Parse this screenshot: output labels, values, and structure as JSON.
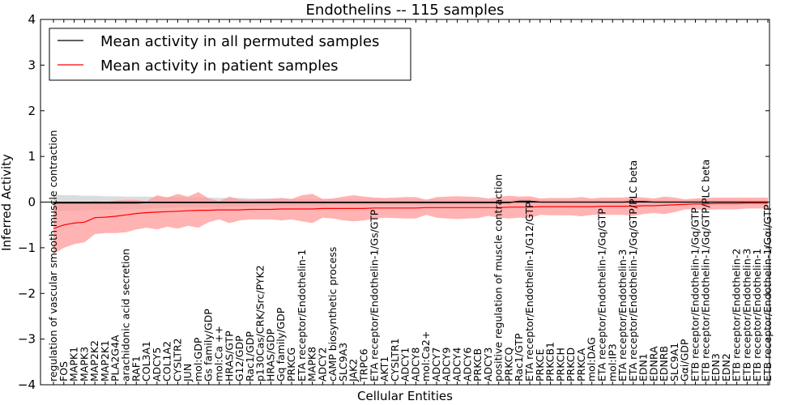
{
  "chart_data": {
    "type": "line",
    "title": "Endothelins -- 115 samples",
    "xlabel": "Cellular Entities",
    "ylabel": "Inferred Activity",
    "ylim": [
      -4,
      4
    ],
    "yticks": [
      -4,
      -3,
      -2,
      -1,
      0,
      1,
      2,
      3,
      4
    ],
    "legend_position": "top-left",
    "colors": {
      "permuted_line": "#000000",
      "permuted_band": "#bfbfbf",
      "patient_line": "#ff0000",
      "patient_band": "#ff9999"
    },
    "categories": [
      "regulation of vascular smooth muscle contraction",
      "FOS",
      "MAPK1",
      "MAPK3",
      "MAP2K2",
      "MAP2K1",
      "PLA2G4A",
      "arachidonic acid secretion",
      "RAF1",
      "COL3A1",
      "ADCY5",
      "COL1A2",
      "CYSLTR2",
      "JUN",
      "mol:GDP",
      "Gs family/GDP",
      "mol:Ca ++",
      "HRAS/GTP",
      "G12/GDP",
      "Rac1/GDP",
      "p130Cas/CRK/Src/PYK2",
      "HRAS/GDP",
      "Gq family/GDP",
      "PRKCG",
      "ETA receptor/Endothelin-1",
      "MAPK8",
      "ADCY2",
      "cAMP biosynthetic process",
      "SLC9A3",
      "JAK2",
      "TRPC6",
      "ETA receptor/Endothelin-1/Gs/GTP",
      "AKT1",
      "CYSLTR1",
      "ADCY1",
      "ADCY8",
      "mol:Ca2+",
      "ADCY7",
      "ADCY9",
      "ADCY4",
      "ADCY6",
      "PRKCB",
      "ADCY3",
      "positive regulation of muscle contraction",
      "PRKCQ",
      "Rac1/GTP",
      "ETA receptor/Endothelin-1/G12/GTP",
      "PRKCE",
      "PRKCB1",
      "PRKCH",
      "PRKCD",
      "PRKCA",
      "mol:DAG",
      "ETA receptor/Endothelin-1/Gq/GTP",
      "mol:IP3",
      "ETA receptor/Endothelin-3",
      "ETA receptor/Endothelin-1/Gq/GTP/PLC beta",
      "EDN1",
      "EDNRA",
      "EDNRB",
      "SLC9A1",
      "Gαi/GDP",
      "ETB receptor/Endothelin-1/Gq/GTP",
      "ETB receptor/Endothelin-1/Gq/GTP/PLC beta",
      "EDN3",
      "EDN2",
      "ETB receptor/Endothelin-2",
      "ETB receptor/Endothelin-3",
      "ETB receptor/Endothelin-1",
      "ETB receptor/Endothelin-1/Gαi/GTP"
    ],
    "series": [
      {
        "name": "Mean activity in all permuted samples",
        "values": [
          -0.02,
          -0.02,
          -0.02,
          -0.02,
          -0.02,
          -0.02,
          -0.02,
          -0.02,
          -0.02,
          -0.01,
          -0.01,
          -0.01,
          -0.01,
          -0.01,
          -0.01,
          -0.01,
          -0.01,
          -0.01,
          -0.01,
          -0.01,
          -0.01,
          -0.01,
          -0.01,
          -0.01,
          -0.01,
          -0.01,
          -0.01,
          -0.01,
          -0.01,
          -0.01,
          -0.01,
          -0.01,
          -0.01,
          -0.01,
          -0.01,
          -0.01,
          -0.01,
          -0.01,
          -0.01,
          -0.01,
          -0.01,
          -0.01,
          -0.01,
          -0.01,
          -0.01,
          0.02,
          0.02,
          0.0,
          0.0,
          0.0,
          0.0,
          0.0,
          0.0,
          0.0,
          0.0,
          0.0,
          0.01,
          0.01,
          0.0,
          0.0,
          0.0,
          0.0,
          0.0,
          0.0,
          0.0,
          0.0,
          0.0,
          0.0,
          0.0,
          0.0
        ],
        "upper": [
          0.16,
          0.15,
          0.15,
          0.14,
          0.14,
          0.13,
          0.13,
          0.12,
          0.12,
          0.12,
          0.11,
          0.11,
          0.11,
          0.1,
          0.1,
          0.1,
          0.09,
          0.09,
          0.09,
          0.08,
          0.08,
          0.08,
          0.08,
          0.07,
          0.07,
          0.07,
          0.07,
          0.06,
          0.06,
          0.06,
          0.06,
          0.06,
          0.06,
          0.06,
          0.06,
          0.06,
          0.06,
          0.06,
          0.05,
          0.05,
          0.05,
          0.05,
          0.05,
          0.05,
          0.05,
          0.07,
          0.07,
          0.05,
          0.05,
          0.05,
          0.05,
          0.05,
          0.05,
          0.05,
          0.05,
          0.05,
          0.06,
          0.06,
          0.05,
          0.05,
          0.05,
          0.05,
          0.05,
          0.05,
          0.05,
          0.05,
          0.05,
          0.05,
          0.05,
          0.05
        ],
        "lower": [
          -0.2,
          -0.19,
          -0.19,
          -0.18,
          -0.18,
          -0.17,
          -0.17,
          -0.16,
          -0.16,
          -0.14,
          -0.13,
          -0.13,
          -0.12,
          -0.12,
          -0.12,
          -0.11,
          -0.11,
          -0.1,
          -0.1,
          -0.1,
          -0.09,
          -0.09,
          -0.09,
          -0.08,
          -0.08,
          -0.08,
          -0.08,
          -0.07,
          -0.07,
          -0.07,
          -0.07,
          -0.07,
          -0.07,
          -0.07,
          -0.07,
          -0.07,
          -0.07,
          -0.07,
          -0.06,
          -0.06,
          -0.06,
          -0.06,
          -0.06,
          -0.06,
          -0.06,
          -0.04,
          -0.04,
          -0.05,
          -0.05,
          -0.05,
          -0.05,
          -0.05,
          -0.05,
          -0.05,
          -0.05,
          -0.05,
          -0.04,
          -0.04,
          -0.05,
          -0.05,
          -0.05,
          -0.05,
          -0.05,
          -0.05,
          -0.05,
          -0.05,
          -0.05,
          -0.05,
          -0.05,
          -0.05
        ]
      },
      {
        "name": "Mean activity in patient samples",
        "values": [
          -0.58,
          -0.5,
          -0.46,
          -0.44,
          -0.34,
          -0.33,
          -0.31,
          -0.28,
          -0.25,
          -0.23,
          -0.22,
          -0.21,
          -0.2,
          -0.19,
          -0.18,
          -0.18,
          -0.17,
          -0.17,
          -0.17,
          -0.16,
          -0.16,
          -0.16,
          -0.15,
          -0.15,
          -0.15,
          -0.15,
          -0.14,
          -0.14,
          -0.14,
          -0.14,
          -0.14,
          -0.13,
          -0.13,
          -0.13,
          -0.13,
          -0.13,
          -0.12,
          -0.12,
          -0.12,
          -0.12,
          -0.12,
          -0.12,
          -0.12,
          -0.12,
          -0.11,
          -0.11,
          -0.11,
          -0.1,
          -0.1,
          -0.1,
          -0.1,
          -0.1,
          -0.1,
          -0.09,
          -0.09,
          -0.09,
          -0.09,
          -0.08,
          -0.08,
          -0.07,
          -0.06,
          -0.05,
          -0.04,
          -0.04,
          -0.03,
          -0.03,
          -0.03,
          -0.02,
          -0.02,
          -0.02
        ],
        "upper": [
          -0.05,
          0.0,
          0.0,
          -0.02,
          0.02,
          0.0,
          0.03,
          0.05,
          0.05,
          0.02,
          0.15,
          0.1,
          0.18,
          0.12,
          0.22,
          0.08,
          0.02,
          0.12,
          0.06,
          0.05,
          0.06,
          0.07,
          0.09,
          0.07,
          0.15,
          0.18,
          0.07,
          0.08,
          0.12,
          0.15,
          0.12,
          0.1,
          0.09,
          0.1,
          0.11,
          0.11,
          0.05,
          0.11,
          0.12,
          0.13,
          0.12,
          0.11,
          0.08,
          0.11,
          0.14,
          0.12,
          0.13,
          0.08,
          0.09,
          0.09,
          0.09,
          0.11,
          0.08,
          0.1,
          0.1,
          0.1,
          0.12,
          0.1,
          0.08,
          0.12,
          0.1,
          0.06,
          0.08,
          0.09,
          0.1,
          0.1,
          0.1,
          0.1,
          0.1,
          0.1
        ],
        "lower": [
          -1.14,
          -1.0,
          -0.92,
          -0.88,
          -0.7,
          -0.68,
          -0.68,
          -0.66,
          -0.6,
          -0.56,
          -0.6,
          -0.54,
          -0.58,
          -0.52,
          -0.56,
          -0.44,
          -0.38,
          -0.46,
          -0.4,
          -0.38,
          -0.38,
          -0.38,
          -0.4,
          -0.38,
          -0.42,
          -0.46,
          -0.34,
          -0.36,
          -0.4,
          -0.42,
          -0.4,
          -0.36,
          -0.34,
          -0.35,
          -0.36,
          -0.36,
          -0.28,
          -0.34,
          -0.36,
          -0.37,
          -0.36,
          -0.35,
          -0.3,
          -0.34,
          -0.36,
          -0.34,
          -0.35,
          -0.28,
          -0.29,
          -0.29,
          -0.29,
          -0.31,
          -0.28,
          -0.28,
          -0.28,
          -0.28,
          -0.3,
          -0.26,
          -0.24,
          -0.26,
          -0.22,
          -0.16,
          -0.16,
          -0.17,
          -0.16,
          -0.16,
          -0.16,
          -0.14,
          -0.14,
          -0.14
        ]
      }
    ]
  }
}
